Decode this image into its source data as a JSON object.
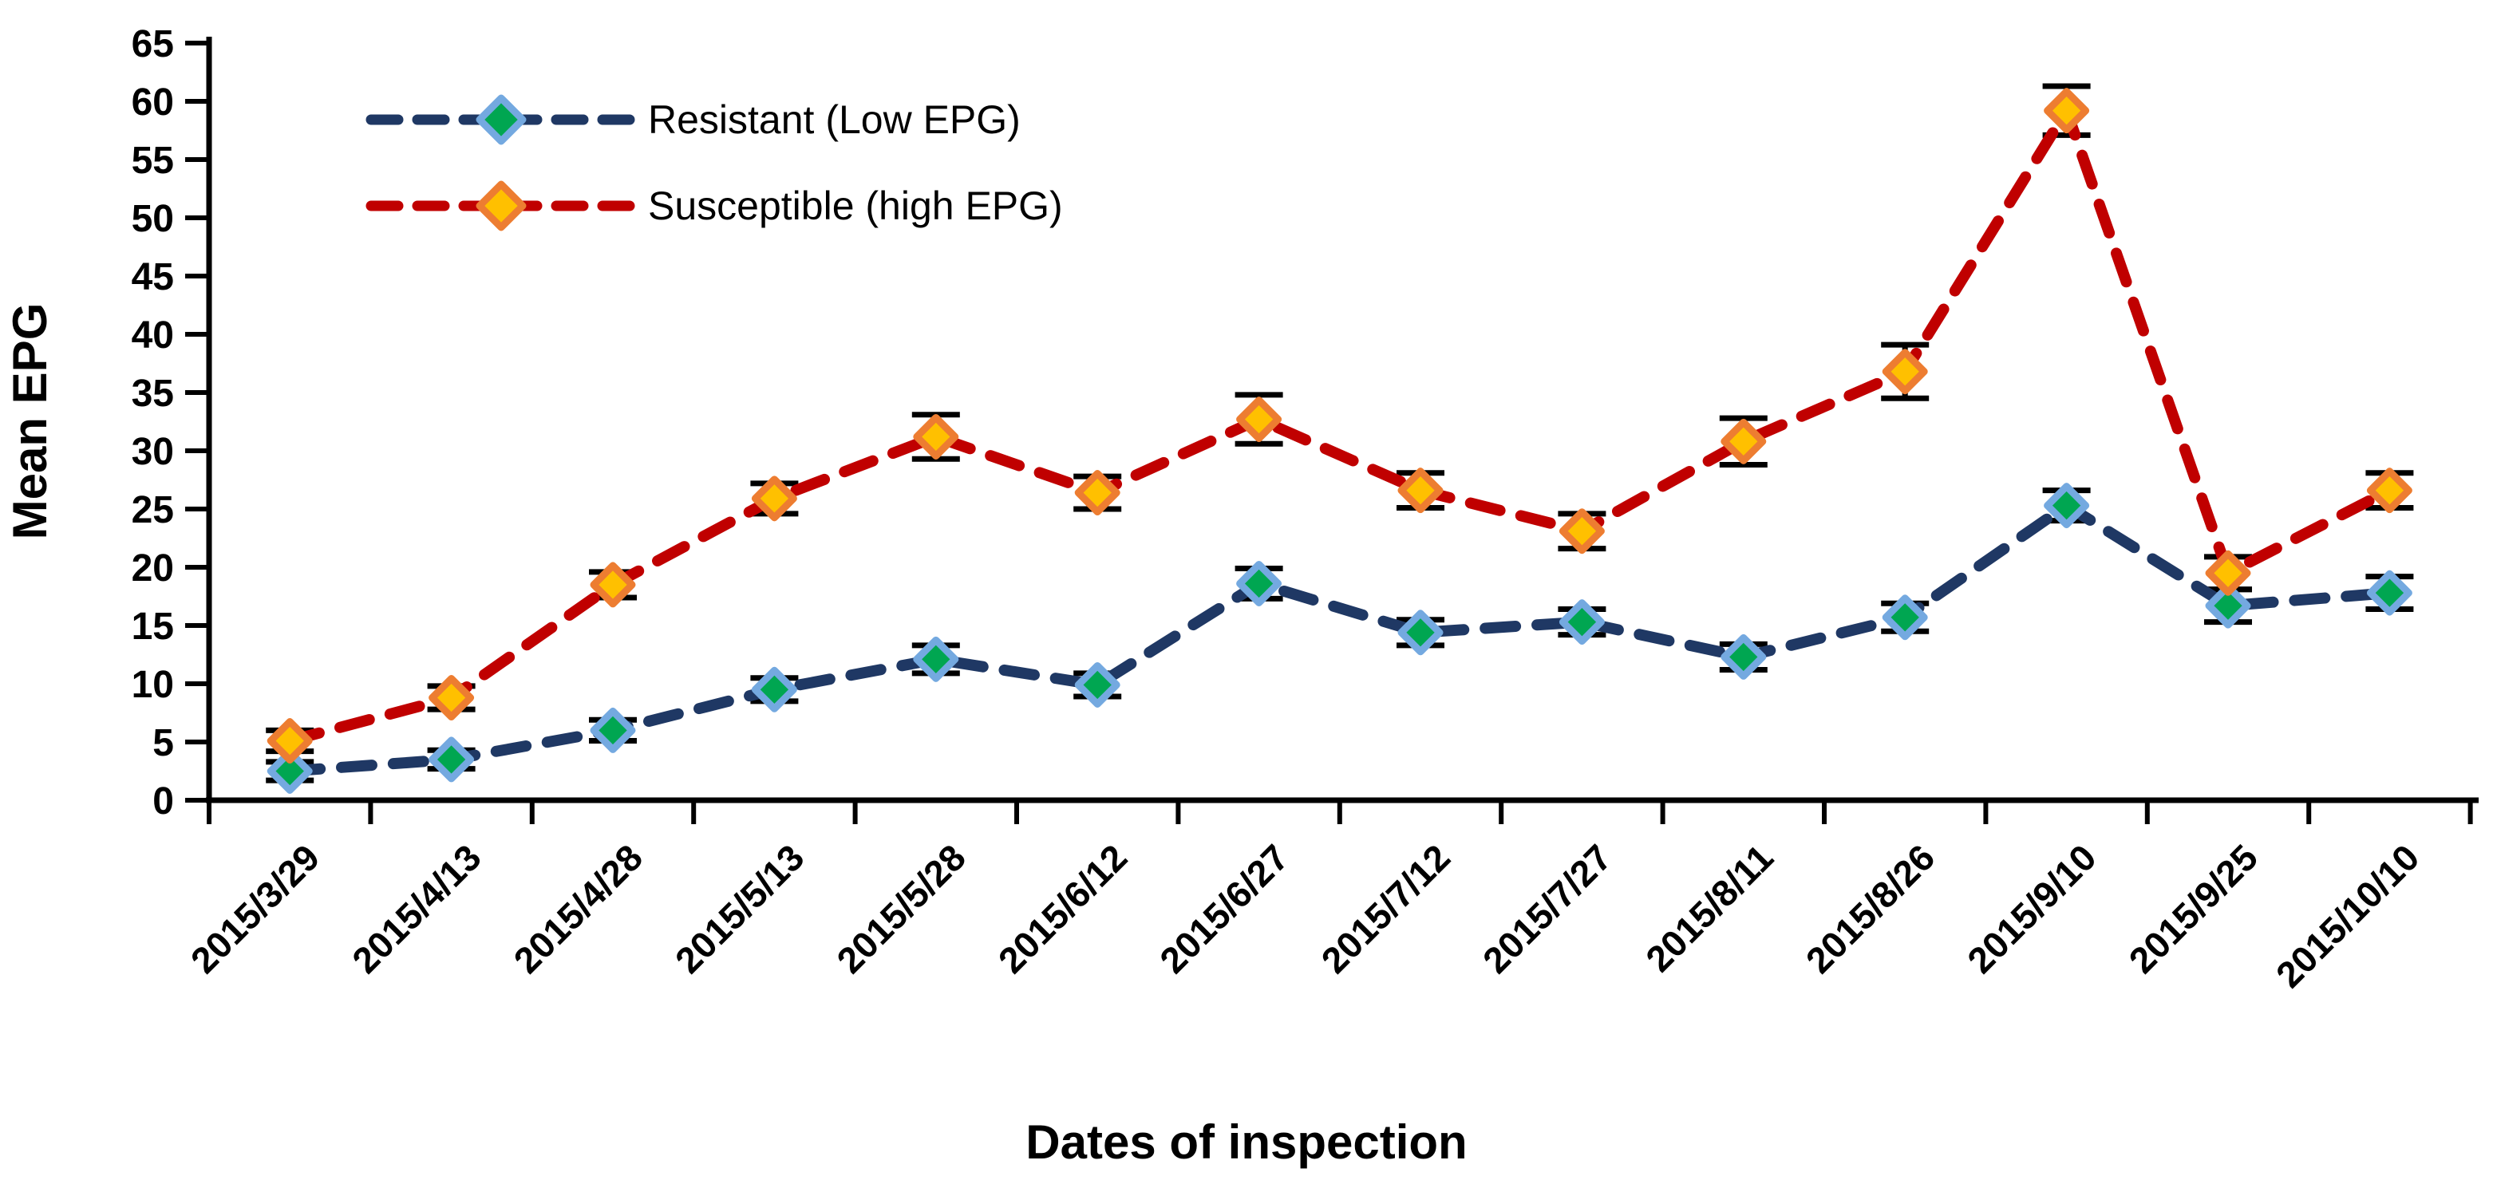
{
  "chart_data": {
    "type": "line",
    "title": "",
    "xlabel": "Dates of inspection",
    "ylabel": "Mean EPG",
    "ylim": [
      0,
      65
    ],
    "y_tick_step": 5,
    "grid": false,
    "legend_position": "top-left-inside",
    "line_style": "dashed",
    "marker_shape": "diamond",
    "error_bars": true,
    "error_bar_color": "#000000",
    "axis_color": "#000000",
    "categories": [
      "2015/3/29",
      "2015/4/13",
      "2015/4/28",
      "2015/5/13",
      "2015/5/28",
      "2015/6/12",
      "2015/6/27",
      "2015/7/12",
      "2015/7/27",
      "2015/8/11",
      "2015/8/26",
      "2015/9/10",
      "2015/9/25",
      "2015/10/10"
    ],
    "series": [
      {
        "name": "Resistant (Low EPG)",
        "line_color": "#1F3864",
        "marker_fill": "#00A651",
        "marker_border": "#74A9E0",
        "values": [
          2.5,
          3.5,
          6.0,
          9.5,
          12.1,
          9.9,
          18.6,
          14.4,
          15.3,
          12.3,
          15.7,
          25.3,
          16.7,
          17.8
        ],
        "errors": [
          0.8,
          0.8,
          0.9,
          1.0,
          1.2,
          1.0,
          1.3,
          1.1,
          1.1,
          1.1,
          1.2,
          1.3,
          1.4,
          1.4
        ]
      },
      {
        "name": "Susceptible (high EPG)",
        "line_color": "#C00000",
        "marker_fill": "#FFC000",
        "marker_border": "#ED7D31",
        "values": [
          5.1,
          8.8,
          18.5,
          25.9,
          31.2,
          26.4,
          32.7,
          26.6,
          23.1,
          30.8,
          36.8,
          59.2,
          19.5,
          26.6
        ],
        "errors": [
          0.9,
          1.0,
          1.1,
          1.3,
          1.9,
          1.4,
          2.1,
          1.5,
          1.5,
          2.0,
          2.3,
          2.1,
          1.4,
          1.5
        ]
      }
    ]
  }
}
